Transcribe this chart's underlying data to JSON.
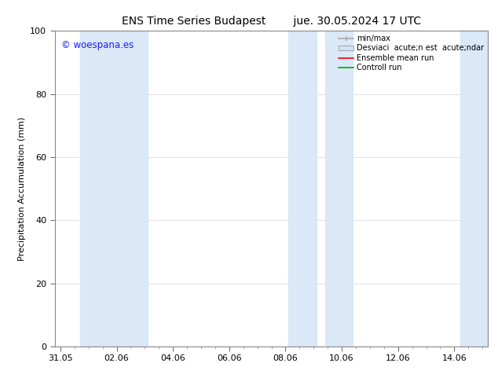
{
  "title_left": "ENS Time Series Budapest",
  "title_right": "jue. 30.05.2024 17 UTC",
  "ylabel": "Precipitation Accumulation (mm)",
  "ylim": [
    0,
    100
  ],
  "yticks": [
    0,
    20,
    40,
    60,
    80,
    100
  ],
  "x_labels": [
    "31.05",
    "02.06",
    "04.06",
    "06.06",
    "08.06",
    "10.06",
    "12.06",
    "14.06"
  ],
  "x_values": [
    0,
    2,
    4,
    6,
    8,
    10,
    12,
    14
  ],
  "xlim": [
    -0.2,
    15.2
  ],
  "watermark_text": "© woespana.es",
  "watermark_color": "#1a1aff",
  "band_color": "#dae8f8",
  "band_regions": [
    [
      0.7,
      2.3
    ],
    [
      2.1,
      3.1
    ],
    [
      8.1,
      9.1
    ],
    [
      9.4,
      10.4
    ],
    [
      14.2,
      15.2
    ]
  ],
  "bg_color": "#ffffff",
  "plot_bg_color": "#ffffff",
  "grid_color": "#dddddd",
  "title_fontsize": 10,
  "axis_fontsize": 8,
  "tick_fontsize": 8,
  "legend_labels": [
    "min/max",
    "Desviaci  acute;n est  acute;ndar",
    "Ensemble mean run",
    "Controll run"
  ],
  "legend_colors_line": [
    "#aaaaaa",
    null,
    "#ff0000",
    "#00aa00"
  ],
  "legend_band_color": "#d0e4f5"
}
